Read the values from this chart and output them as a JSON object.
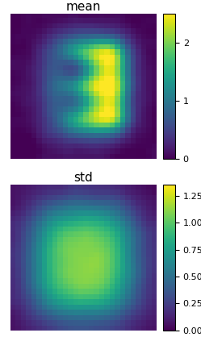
{
  "title_mean": "mean",
  "title_std": "std",
  "colormap_mean": "viridis",
  "colormap_std": "viridis",
  "mean_vmin": 0,
  "mean_vmax": 2.5,
  "std_vmin": 0,
  "std_vmax": 1.35,
  "figsize": [
    2.49,
    4.18
  ],
  "dpi": 100,
  "image_size": 28,
  "title_fontsize": 11
}
